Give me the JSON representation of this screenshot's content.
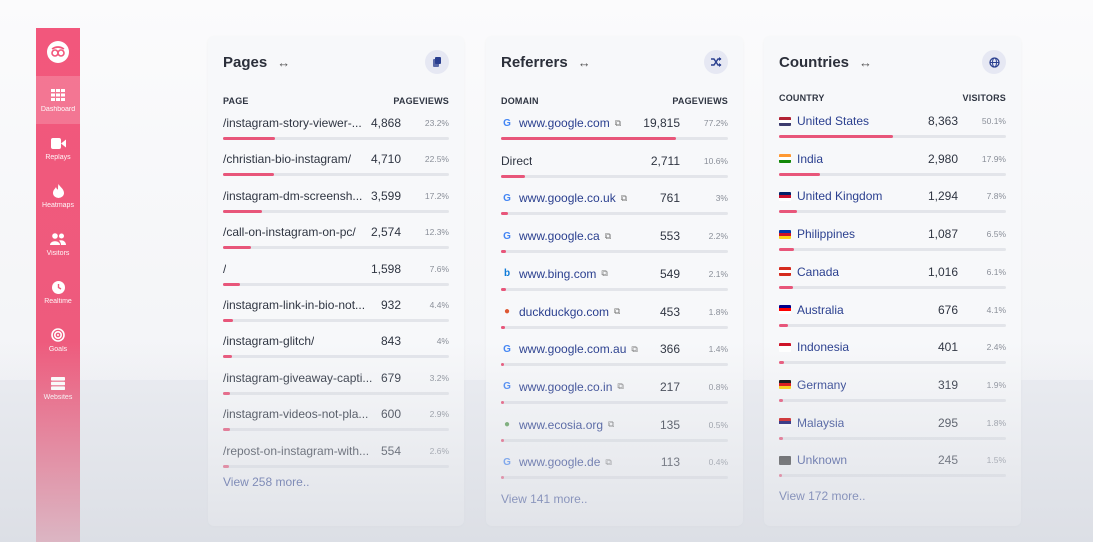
{
  "sidebar": {
    "logo": "heatmap-logo",
    "items": [
      {
        "label": "Dashboard",
        "icon": "grid-icon",
        "active": true
      },
      {
        "label": "Replays",
        "icon": "video-icon",
        "active": false
      },
      {
        "label": "Heatmaps",
        "icon": "flame-icon",
        "active": false
      },
      {
        "label": "Visitors",
        "icon": "users-icon",
        "active": false
      },
      {
        "label": "Realtime",
        "icon": "clock-icon",
        "active": false
      },
      {
        "label": "Goals",
        "icon": "target-icon",
        "active": false
      },
      {
        "label": "Websites",
        "icon": "servers-icon",
        "active": false
      }
    ]
  },
  "pages": {
    "title": "Pages",
    "col_left": "PAGE",
    "col_right": "PAGEVIEWS",
    "more": "View 258 more..",
    "rows": [
      {
        "name": "/instagram-story-viewer-...",
        "value": "4,868",
        "pct": "23.2%",
        "share": 23.2
      },
      {
        "name": "/christian-bio-instagram/",
        "value": "4,710",
        "pct": "22.5%",
        "share": 22.5
      },
      {
        "name": "/instagram-dm-screensh...",
        "value": "3,599",
        "pct": "17.2%",
        "share": 17.2
      },
      {
        "name": "/call-on-instagram-on-pc/",
        "value": "2,574",
        "pct": "12.3%",
        "share": 12.3
      },
      {
        "name": "/",
        "value": "1,598",
        "pct": "7.6%",
        "share": 7.6
      },
      {
        "name": "/instagram-link-in-bio-not...",
        "value": "932",
        "pct": "4.4%",
        "share": 4.4
      },
      {
        "name": "/instagram-glitch/",
        "value": "843",
        "pct": "4%",
        "share": 4
      },
      {
        "name": "/instagram-giveaway-capti...",
        "value": "679",
        "pct": "3.2%",
        "share": 3.2
      },
      {
        "name": "/instagram-videos-not-pla...",
        "value": "600",
        "pct": "2.9%",
        "share": 2.9
      },
      {
        "name": "/repost-on-instagram-with...",
        "value": "554",
        "pct": "2.6%",
        "share": 2.6
      }
    ]
  },
  "referrers": {
    "title": "Referrers",
    "col_left": "DOMAIN",
    "col_right": "PAGEVIEWS",
    "more": "View 141 more..",
    "rows": [
      {
        "name": "www.google.com",
        "icon": "G",
        "icon_color": "#4285f4",
        "value": "19,815",
        "pct": "77.2%",
        "share": 77.2,
        "external": true
      },
      {
        "name": "Direct",
        "icon": "",
        "icon_color": "",
        "value": "2,711",
        "pct": "10.6%",
        "share": 10.6,
        "external": false
      },
      {
        "name": "www.google.co.uk",
        "icon": "G",
        "icon_color": "#4285f4",
        "value": "761",
        "pct": "3%",
        "share": 3,
        "external": true
      },
      {
        "name": "www.google.ca",
        "icon": "G",
        "icon_color": "#4285f4",
        "value": "553",
        "pct": "2.2%",
        "share": 2.2,
        "external": true
      },
      {
        "name": "www.bing.com",
        "icon": "b",
        "icon_color": "#0f7bd8",
        "value": "549",
        "pct": "2.1%",
        "share": 2.1,
        "external": true
      },
      {
        "name": "duckduckgo.com",
        "icon": "●",
        "icon_color": "#de5833",
        "value": "453",
        "pct": "1.8%",
        "share": 1.8,
        "external": true
      },
      {
        "name": "www.google.com.au",
        "icon": "G",
        "icon_color": "#4285f4",
        "value": "366",
        "pct": "1.4%",
        "share": 1.4,
        "external": true
      },
      {
        "name": "www.google.co.in",
        "icon": "G",
        "icon_color": "#4285f4",
        "value": "217",
        "pct": "0.8%",
        "share": 0.8,
        "external": true
      },
      {
        "name": "www.ecosia.org",
        "icon": "●",
        "icon_color": "#5fa05a",
        "value": "135",
        "pct": "0.5%",
        "share": 0.5,
        "external": true
      },
      {
        "name": "www.google.de",
        "icon": "G",
        "icon_color": "#4285f4",
        "value": "113",
        "pct": "0.4%",
        "share": 0.4,
        "external": true
      }
    ]
  },
  "countries": {
    "title": "Countries",
    "col_left": "COUNTRY",
    "col_right": "VISITORS",
    "more": "View 172 more..",
    "rows": [
      {
        "name": "United States",
        "flag": [
          "#b22234",
          "#ffffff",
          "#3c3b6e"
        ],
        "value": "8,363",
        "pct": "50.1%",
        "share": 50.1
      },
      {
        "name": "India",
        "flag": [
          "#ff9933",
          "#ffffff",
          "#138808"
        ],
        "value": "2,980",
        "pct": "17.9%",
        "share": 17.9
      },
      {
        "name": "United Kingdom",
        "flag": [
          "#012169",
          "#c8102e",
          "#ffffff"
        ],
        "value": "1,294",
        "pct": "7.8%",
        "share": 7.8
      },
      {
        "name": "Philippines",
        "flag": [
          "#0038a8",
          "#ce1126",
          "#fcd116"
        ],
        "value": "1,087",
        "pct": "6.5%",
        "share": 6.5
      },
      {
        "name": "Canada",
        "flag": [
          "#d52b1e",
          "#ffffff",
          "#d52b1e"
        ],
        "value": "1,016",
        "pct": "6.1%",
        "share": 6.1
      },
      {
        "name": "Australia",
        "flag": [
          "#00008b",
          "#ff0000",
          "#ffffff"
        ],
        "value": "676",
        "pct": "4.1%",
        "share": 4.1
      },
      {
        "name": "Indonesia",
        "flag": [
          "#ce1126",
          "#ffffff",
          "#ffffff"
        ],
        "value": "401",
        "pct": "2.4%",
        "share": 2.4
      },
      {
        "name": "Germany",
        "flag": [
          "#000000",
          "#dd0000",
          "#ffce00"
        ],
        "value": "319",
        "pct": "1.9%",
        "share": 1.9
      },
      {
        "name": "Malaysia",
        "flag": [
          "#cc0001",
          "#010066",
          "#ffffff"
        ],
        "value": "295",
        "pct": "1.8%",
        "share": 1.8
      },
      {
        "name": "Unknown",
        "flag": [
          "#333333",
          "#333333",
          "#333333"
        ],
        "value": "245",
        "pct": "1.5%",
        "share": 1.5
      }
    ]
  }
}
